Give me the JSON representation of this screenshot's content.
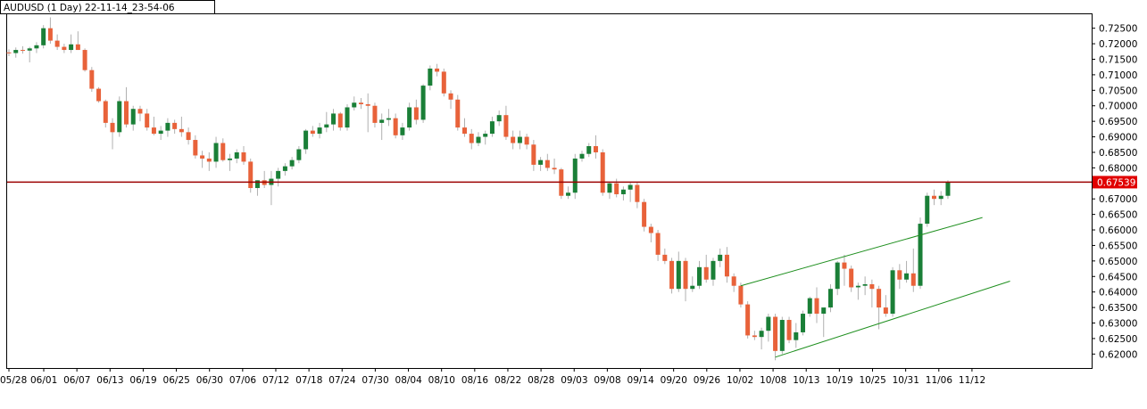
{
  "window": {
    "title": "AUDUSD (1 Day) 22-11-14_23-54-06"
  },
  "colors": {
    "background": "#ffffff",
    "frame": "#000000",
    "bull": "#1a7f37",
    "bear": "#e8623a",
    "wick": "#b0b0b0",
    "hline": "#9b0000",
    "price_tag_bg": "#e00000",
    "price_tag_text": "#ffffff",
    "channel": "#1e8f1e"
  },
  "chart_data": {
    "type": "candlestick",
    "title": "AUDUSD (1 Day) 22-11-14_23-54-06",
    "ylim": [
      0.6155,
      0.7295
    ],
    "y_ticks": [
      "0.72500",
      "0.72000",
      "0.71500",
      "0.71000",
      "0.70500",
      "0.70000",
      "0.69500",
      "0.69000",
      "0.68500",
      "0.68000",
      "0.67500",
      "0.67000",
      "0.66500",
      "0.66000",
      "0.65500",
      "0.65000",
      "0.64500",
      "0.64000",
      "0.63500",
      "0.63000",
      "0.62500",
      "0.62000"
    ],
    "x_ticks": [
      "05/28",
      "06/01",
      "06/07",
      "06/13",
      "06/19",
      "06/25",
      "06/30",
      "07/06",
      "07/12",
      "07/18",
      "07/24",
      "07/30",
      "08/04",
      "08/10",
      "08/16",
      "08/22",
      "08/28",
      "09/03",
      "09/08",
      "09/14",
      "09/20",
      "09/26",
      "10/02",
      "10/08",
      "10/13",
      "10/19",
      "10/25",
      "10/31",
      "11/06",
      "11/12"
    ],
    "candles": [
      [
        0.7172,
        0.7182,
        0.716,
        0.717
      ],
      [
        0.717,
        0.7188,
        0.7155,
        0.718
      ],
      [
        0.718,
        0.7192,
        0.7168,
        0.7178
      ],
      [
        0.7178,
        0.719,
        0.714,
        0.7185
      ],
      [
        0.7185,
        0.7205,
        0.717,
        0.7195
      ],
      [
        0.7195,
        0.726,
        0.7185,
        0.725
      ],
      [
        0.725,
        0.7285,
        0.72,
        0.721
      ],
      [
        0.721,
        0.723,
        0.718,
        0.719
      ],
      [
        0.719,
        0.72,
        0.717,
        0.718
      ],
      [
        0.718,
        0.723,
        0.717,
        0.7198
      ],
      [
        0.7198,
        0.724,
        0.718,
        0.718
      ],
      [
        0.718,
        0.7185,
        0.711,
        0.7115
      ],
      [
        0.7115,
        0.7125,
        0.7045,
        0.7055
      ],
      [
        0.7055,
        0.706,
        0.701,
        0.7015
      ],
      [
        0.7015,
        0.702,
        0.693,
        0.6945
      ],
      [
        0.6945,
        0.696,
        0.686,
        0.6915
      ],
      [
        0.6915,
        0.703,
        0.69,
        0.7015
      ],
      [
        0.7015,
        0.706,
        0.693,
        0.694
      ],
      [
        0.694,
        0.7,
        0.692,
        0.699
      ],
      [
        0.699,
        0.7,
        0.695,
        0.6975
      ],
      [
        0.6975,
        0.699,
        0.692,
        0.693
      ],
      [
        0.693,
        0.6965,
        0.6905,
        0.691
      ],
      [
        0.691,
        0.6935,
        0.689,
        0.692
      ],
      [
        0.692,
        0.696,
        0.69,
        0.6945
      ],
      [
        0.6945,
        0.6955,
        0.691,
        0.6925
      ],
      [
        0.6925,
        0.6965,
        0.69,
        0.6915
      ],
      [
        0.6915,
        0.693,
        0.6875,
        0.689
      ],
      [
        0.689,
        0.6905,
        0.683,
        0.684
      ],
      [
        0.684,
        0.6855,
        0.68,
        0.683
      ],
      [
        0.683,
        0.685,
        0.679,
        0.682
      ],
      [
        0.682,
        0.69,
        0.68,
        0.688
      ],
      [
        0.688,
        0.6895,
        0.682,
        0.6825
      ],
      [
        0.6825,
        0.6845,
        0.679,
        0.683
      ],
      [
        0.683,
        0.686,
        0.6815,
        0.685
      ],
      [
        0.685,
        0.687,
        0.681,
        0.682
      ],
      [
        0.682,
        0.683,
        0.672,
        0.6735
      ],
      [
        0.6735,
        0.676,
        0.671,
        0.676
      ],
      [
        0.676,
        0.679,
        0.6735,
        0.6745
      ],
      [
        0.6745,
        0.679,
        0.668,
        0.6765
      ],
      [
        0.6765,
        0.68,
        0.674,
        0.679
      ],
      [
        0.679,
        0.6815,
        0.6775,
        0.6805
      ],
      [
        0.6805,
        0.6835,
        0.6795,
        0.6825
      ],
      [
        0.6825,
        0.687,
        0.6815,
        0.686
      ],
      [
        0.686,
        0.6925,
        0.6845,
        0.692
      ],
      [
        0.692,
        0.6935,
        0.69,
        0.691
      ],
      [
        0.691,
        0.6945,
        0.6895,
        0.693
      ],
      [
        0.693,
        0.698,
        0.6915,
        0.694
      ],
      [
        0.694,
        0.699,
        0.692,
        0.6975
      ],
      [
        0.6975,
        0.698,
        0.692,
        0.693
      ],
      [
        0.693,
        0.7005,
        0.692,
        0.6995
      ],
      [
        0.6995,
        0.703,
        0.6985,
        0.701
      ],
      [
        0.701,
        0.7025,
        0.699,
        0.7005
      ],
      [
        0.7005,
        0.704,
        0.6915,
        0.7
      ],
      [
        0.7,
        0.701,
        0.693,
        0.6945
      ],
      [
        0.6945,
        0.6975,
        0.689,
        0.6955
      ],
      [
        0.6955,
        0.699,
        0.6935,
        0.696
      ],
      [
        0.696,
        0.6975,
        0.6895,
        0.6905
      ],
      [
        0.6905,
        0.6945,
        0.689,
        0.693
      ],
      [
        0.693,
        0.701,
        0.692,
        0.6995
      ],
      [
        0.6995,
        0.702,
        0.694,
        0.6955
      ],
      [
        0.6955,
        0.707,
        0.6945,
        0.7065
      ],
      [
        0.7065,
        0.713,
        0.705,
        0.712
      ],
      [
        0.712,
        0.7135,
        0.7095,
        0.711
      ],
      [
        0.711,
        0.712,
        0.703,
        0.704
      ],
      [
        0.704,
        0.705,
        0.699,
        0.702
      ],
      [
        0.702,
        0.7035,
        0.692,
        0.693
      ],
      [
        0.693,
        0.696,
        0.69,
        0.691
      ],
      [
        0.691,
        0.6925,
        0.686,
        0.688
      ],
      [
        0.688,
        0.6915,
        0.687,
        0.69
      ],
      [
        0.69,
        0.692,
        0.6875,
        0.691
      ],
      [
        0.691,
        0.6965,
        0.69,
        0.695
      ],
      [
        0.695,
        0.6985,
        0.6935,
        0.697
      ],
      [
        0.697,
        0.7,
        0.689,
        0.69
      ],
      [
        0.69,
        0.692,
        0.686,
        0.688
      ],
      [
        0.688,
        0.692,
        0.686,
        0.69
      ],
      [
        0.69,
        0.691,
        0.686,
        0.6875
      ],
      [
        0.6875,
        0.689,
        0.679,
        0.681
      ],
      [
        0.681,
        0.6835,
        0.679,
        0.6825
      ],
      [
        0.6825,
        0.6845,
        0.679,
        0.68
      ],
      [
        0.68,
        0.683,
        0.678,
        0.6795
      ],
      [
        0.6795,
        0.68,
        0.67,
        0.671
      ],
      [
        0.671,
        0.674,
        0.67,
        0.672
      ],
      [
        0.672,
        0.6845,
        0.67,
        0.683
      ],
      [
        0.683,
        0.6855,
        0.682,
        0.6845
      ],
      [
        0.6845,
        0.688,
        0.6835,
        0.687
      ],
      [
        0.687,
        0.6905,
        0.683,
        0.685
      ],
      [
        0.685,
        0.686,
        0.671,
        0.672
      ],
      [
        0.672,
        0.6755,
        0.67,
        0.675
      ],
      [
        0.675,
        0.6765,
        0.6705,
        0.6715
      ],
      [
        0.6715,
        0.674,
        0.6695,
        0.673
      ],
      [
        0.673,
        0.6755,
        0.669,
        0.6745
      ],
      [
        0.6745,
        0.6755,
        0.667,
        0.669
      ],
      [
        0.669,
        0.67,
        0.6595,
        0.661
      ],
      [
        0.661,
        0.662,
        0.656,
        0.659
      ],
      [
        0.659,
        0.66,
        0.65,
        0.652
      ],
      [
        0.652,
        0.654,
        0.649,
        0.65
      ],
      [
        0.65,
        0.651,
        0.6395,
        0.641
      ],
      [
        0.641,
        0.653,
        0.64,
        0.65
      ],
      [
        0.65,
        0.651,
        0.637,
        0.641
      ],
      [
        0.641,
        0.645,
        0.64,
        0.642
      ],
      [
        0.642,
        0.65,
        0.641,
        0.648
      ],
      [
        0.648,
        0.652,
        0.643,
        0.644
      ],
      [
        0.644,
        0.651,
        0.642,
        0.65
      ],
      [
        0.65,
        0.654,
        0.648,
        0.652
      ],
      [
        0.652,
        0.6545,
        0.643,
        0.645
      ],
      [
        0.645,
        0.646,
        0.64,
        0.642
      ],
      [
        0.642,
        0.643,
        0.635,
        0.636
      ],
      [
        0.636,
        0.637,
        0.625,
        0.626
      ],
      [
        0.626,
        0.6275,
        0.6245,
        0.6255
      ],
      [
        0.6255,
        0.6285,
        0.6215,
        0.6275
      ],
      [
        0.6275,
        0.633,
        0.624,
        0.632
      ],
      [
        0.632,
        0.633,
        0.618,
        0.621
      ],
      [
        0.621,
        0.632,
        0.62,
        0.631
      ],
      [
        0.631,
        0.632,
        0.6235,
        0.6245
      ],
      [
        0.6245,
        0.63,
        0.622,
        0.627
      ],
      [
        0.627,
        0.634,
        0.626,
        0.633
      ],
      [
        0.633,
        0.6385,
        0.632,
        0.638
      ],
      [
        0.638,
        0.6415,
        0.63,
        0.633
      ],
      [
        0.633,
        0.6345,
        0.6255,
        0.635
      ],
      [
        0.635,
        0.6425,
        0.6335,
        0.641
      ],
      [
        0.641,
        0.65,
        0.639,
        0.6495
      ],
      [
        0.6495,
        0.652,
        0.642,
        0.6475
      ],
      [
        0.6475,
        0.6485,
        0.64,
        0.6415
      ],
      [
        0.6415,
        0.643,
        0.6375,
        0.642
      ],
      [
        0.642,
        0.645,
        0.639,
        0.6425
      ],
      [
        0.6425,
        0.644,
        0.635,
        0.641
      ],
      [
        0.641,
        0.642,
        0.628,
        0.635
      ],
      [
        0.635,
        0.639,
        0.632,
        0.633
      ],
      [
        0.633,
        0.648,
        0.632,
        0.647
      ],
      [
        0.647,
        0.649,
        0.641,
        0.644
      ],
      [
        0.644,
        0.65,
        0.643,
        0.646
      ],
      [
        0.646,
        0.654,
        0.64,
        0.642
      ],
      [
        0.642,
        0.664,
        0.641,
        0.662
      ],
      [
        0.662,
        0.672,
        0.661,
        0.671
      ],
      [
        0.671,
        0.673,
        0.668,
        0.67
      ],
      [
        0.67,
        0.6725,
        0.668,
        0.671
      ],
      [
        0.671,
        0.676,
        0.67,
        0.6754
      ]
    ],
    "horizontal_line": {
      "value": 0.67539,
      "label": "0.67539"
    },
    "trendlines": [
      {
        "from": [
          106,
          0.642
        ],
        "to": [
          141,
          0.664
        ]
      },
      {
        "from": [
          111,
          0.619
        ],
        "to": [
          145,
          0.6435
        ]
      }
    ],
    "grid": false
  }
}
